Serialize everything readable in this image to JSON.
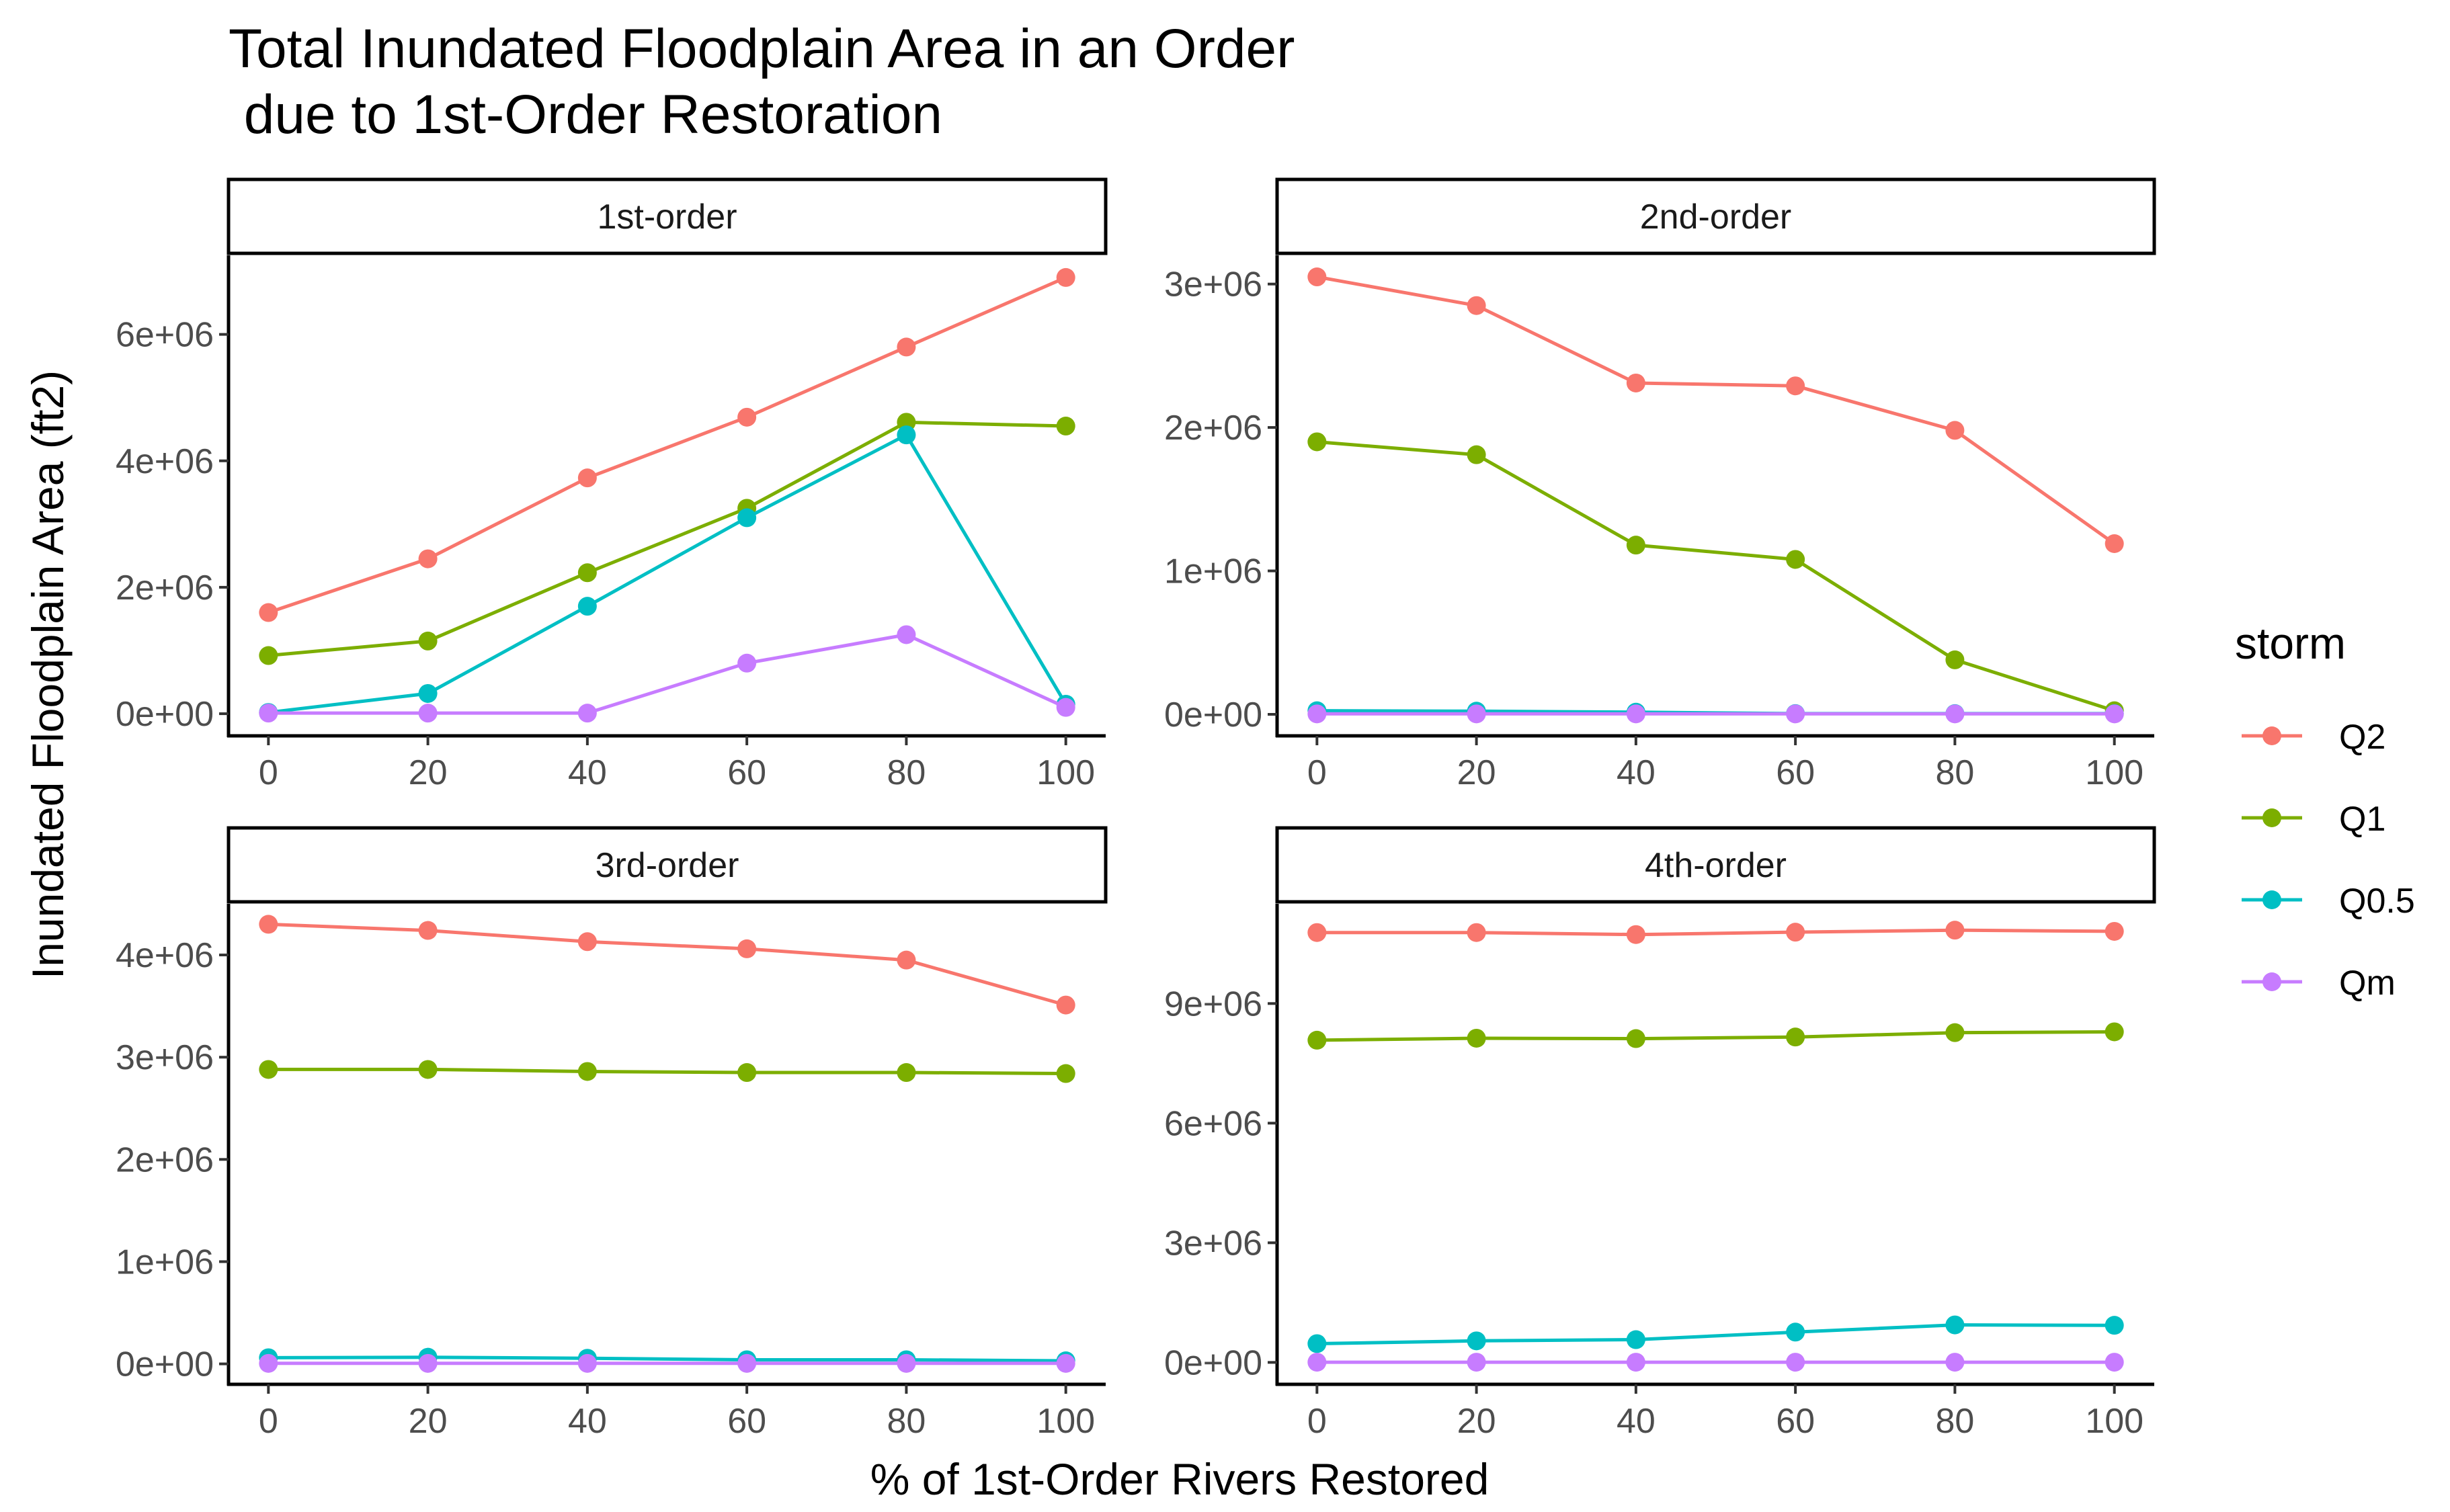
{
  "chart_data": {
    "type": "line",
    "title": "Total Inundated Floodplain Area in an Order\n due to 1st-Order Restoration",
    "xlabel": "% of 1st-Order Rivers Restored",
    "ylabel": "Inundated Floodplain Area (ft2)",
    "legend": {
      "title": "storm",
      "placement": "right",
      "entries": [
        {
          "name": "Q2",
          "color": "#F8766D"
        },
        {
          "name": "Q1",
          "color": "#7CAE00"
        },
        {
          "name": "Q0.5",
          "color": "#00BFC4"
        },
        {
          "name": "Qm",
          "color": "#C77CFF"
        }
      ]
    },
    "x": [
      0,
      20,
      40,
      60,
      80,
      100
    ],
    "x_ticks": [
      0,
      20,
      40,
      60,
      80,
      100
    ],
    "x_tick_labels": [
      "0",
      "20",
      "40",
      "60",
      "80",
      "100"
    ],
    "xlim": [
      -5,
      105
    ],
    "grid": false,
    "panels": [
      {
        "strip": "1st-order",
        "ylim": [
          -350000,
          7250000
        ],
        "y_ticks": [
          0,
          2000000,
          4000000,
          6000000
        ],
        "y_tick_labels": [
          "0e+00",
          "2e+06",
          "4e+06",
          "6e+06"
        ],
        "series": [
          {
            "name": "Q2",
            "values": [
              1600000,
              2450000,
              3730000,
              4690000,
              5800000,
              6900000
            ]
          },
          {
            "name": "Q1",
            "values": [
              920000,
              1150000,
              2230000,
              3250000,
              4610000,
              4550000
            ]
          },
          {
            "name": "Q0.5",
            "values": [
              20000,
              320000,
              1700000,
              3100000,
              4410000,
              150000
            ]
          },
          {
            "name": "Qm",
            "values": [
              10000,
              10000,
              10000,
              800000,
              1250000,
              100000
            ]
          }
        ]
      },
      {
        "strip": "2nd-order",
        "ylim": [
          -150000,
          3200000
        ],
        "y_ticks": [
          0,
          1000000,
          2000000,
          3000000
        ],
        "y_tick_labels": [
          "0e+00",
          "1e+06",
          "2e+06",
          "3e+06"
        ],
        "series": [
          {
            "name": "Q2",
            "values": [
              3050000,
              2850000,
              2310000,
              2290000,
              1980000,
              1190000
            ]
          },
          {
            "name": "Q1",
            "values": [
              1900000,
              1810000,
              1180000,
              1080000,
              380000,
              25000
            ]
          },
          {
            "name": "Q0.5",
            "values": [
              25000,
              22000,
              15000,
              5000,
              5000,
              5000
            ]
          },
          {
            "name": "Qm",
            "values": [
              3000,
              3000,
              3000,
              3000,
              3000,
              3000
            ]
          }
        ]
      },
      {
        "strip": "3rd-order",
        "ylim": [
          -200000,
          4500000
        ],
        "y_ticks": [
          0,
          1000000,
          2000000,
          3000000,
          4000000
        ],
        "y_tick_labels": [
          "0e+00",
          "1e+06",
          "2e+06",
          "3e+06",
          "4e+06"
        ],
        "series": [
          {
            "name": "Q2",
            "values": [
              4300000,
              4240000,
              4130000,
              4060000,
              3950000,
              3510000
            ]
          },
          {
            "name": "Q1",
            "values": [
              2880000,
              2880000,
              2860000,
              2850000,
              2850000,
              2840000
            ]
          },
          {
            "name": "Q0.5",
            "values": [
              60000,
              65000,
              55000,
              40000,
              40000,
              30000
            ]
          },
          {
            "name": "Qm",
            "values": [
              5000,
              5000,
              5000,
              5000,
              5000,
              5000
            ]
          }
        ]
      },
      {
        "strip": "4th-order",
        "ylim": [
          -550000,
          11500000
        ],
        "y_ticks": [
          0,
          3000000,
          6000000,
          9000000
        ],
        "y_tick_labels": [
          "0e+00",
          "3e+06",
          "6e+06",
          "9e+06"
        ],
        "series": [
          {
            "name": "Q2",
            "values": [
              10780000,
              10780000,
              10730000,
              10790000,
              10840000,
              10810000
            ]
          },
          {
            "name": "Q1",
            "values": [
              8080000,
              8130000,
              8120000,
              8160000,
              8270000,
              8290000
            ]
          },
          {
            "name": "Q0.5",
            "values": [
              470000,
              540000,
              570000,
              760000,
              940000,
              930000
            ]
          },
          {
            "name": "Qm",
            "values": [
              5000,
              5000,
              5000,
              5000,
              5000,
              5000
            ]
          }
        ]
      }
    ]
  }
}
